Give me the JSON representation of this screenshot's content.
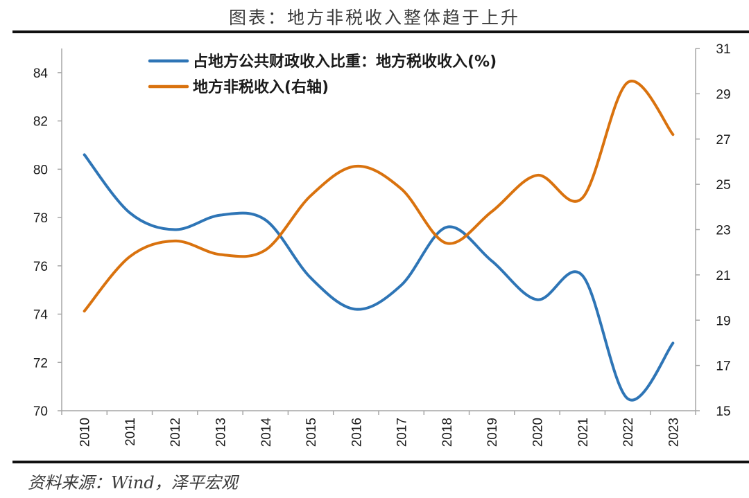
{
  "title": "图表：地方非税收入整体趋于上升",
  "source": "资料来源：Wind，泽平宏观",
  "colors": {
    "series1": "#2e75b6",
    "series2": "#d9720e",
    "axis": "#a6a6a6",
    "text": "#1a1a1a"
  },
  "chart_data": {
    "type": "line",
    "categories": [
      "2010",
      "2011",
      "2012",
      "2013",
      "2014",
      "2015",
      "2016",
      "2017",
      "2018",
      "2019",
      "2020",
      "2021",
      "2022",
      "2023"
    ],
    "series": [
      {
        "name": "占地方公共财政收入比重：地方税收收入(%)",
        "axis": "left",
        "values": [
          80.6,
          78.2,
          77.5,
          78.1,
          77.9,
          75.5,
          74.2,
          75.2,
          77.6,
          76.2,
          74.6,
          75.6,
          70.5,
          72.8
        ]
      },
      {
        "name": "地方非税收入(右轴)",
        "axis": "right",
        "values": [
          19.4,
          21.8,
          22.5,
          21.9,
          22.1,
          24.5,
          25.8,
          24.8,
          22.4,
          23.8,
          25.4,
          24.4,
          29.5,
          27.2
        ]
      }
    ],
    "left_axis": {
      "ylim": [
        70,
        85
      ],
      "ticks": [
        "70",
        "72",
        "74",
        "76",
        "78",
        "80",
        "82",
        "84"
      ]
    },
    "right_axis": {
      "ylim": [
        15,
        31
      ],
      "ticks": [
        "15",
        "17",
        "19",
        "21",
        "23",
        "25",
        "27",
        "29",
        "31"
      ]
    },
    "grid": false,
    "legend_position": "top-center",
    "smooth": true
  }
}
